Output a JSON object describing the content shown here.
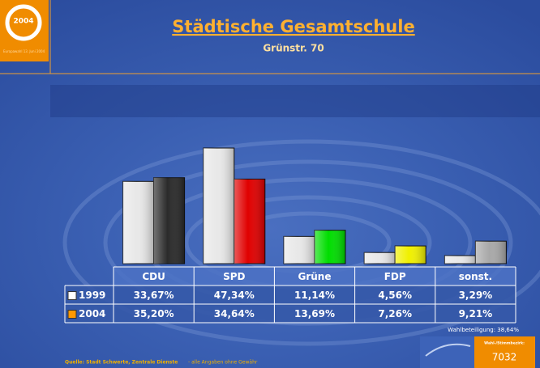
{
  "logo": {
    "year": "2004",
    "caption": "Europawahl 13. Juni 2004"
  },
  "chart_data": {
    "type": "bar",
    "title": "Städtische Gesamtschule",
    "subtitle": "Grünstr. 70",
    "categories": [
      "CDU",
      "SPD",
      "Grüne",
      "FDP",
      "sonst."
    ],
    "series": [
      {
        "name": "1999",
        "color": "#ffffff",
        "bar_colors": [
          "#e8e8e8",
          "#e8e8e8",
          "#e8e8e8",
          "#e8e8e8",
          "#e8e8e8"
        ],
        "values": [
          33.67,
          47.34,
          11.14,
          4.56,
          3.29
        ],
        "value_labels": [
          "33,67%",
          "47,34%",
          "11,14%",
          "4,56%",
          "3,29%"
        ]
      },
      {
        "name": "2004",
        "color": "#ff9900",
        "bar_colors": [
          "#2a2a2a",
          "#e00000",
          "#00dd00",
          "#f0f000",
          "#a8a8a8"
        ],
        "values": [
          35.2,
          34.64,
          13.69,
          7.26,
          9.21
        ],
        "value_labels": [
          "35,20%",
          "34,64%",
          "13,69%",
          "7,26%",
          "9,21%"
        ]
      }
    ],
    "ylim": [
      0,
      50
    ]
  },
  "footer": {
    "turnout": "Wahlbeteiligung: 38,64%",
    "source": "Quelle: Stadt Schwerte, Zentrale Dienste",
    "disclaimer": "- alle Angaben ohne Gewähr",
    "district_label": "Wahl-/Stimmbezirk:",
    "district": "7032"
  }
}
